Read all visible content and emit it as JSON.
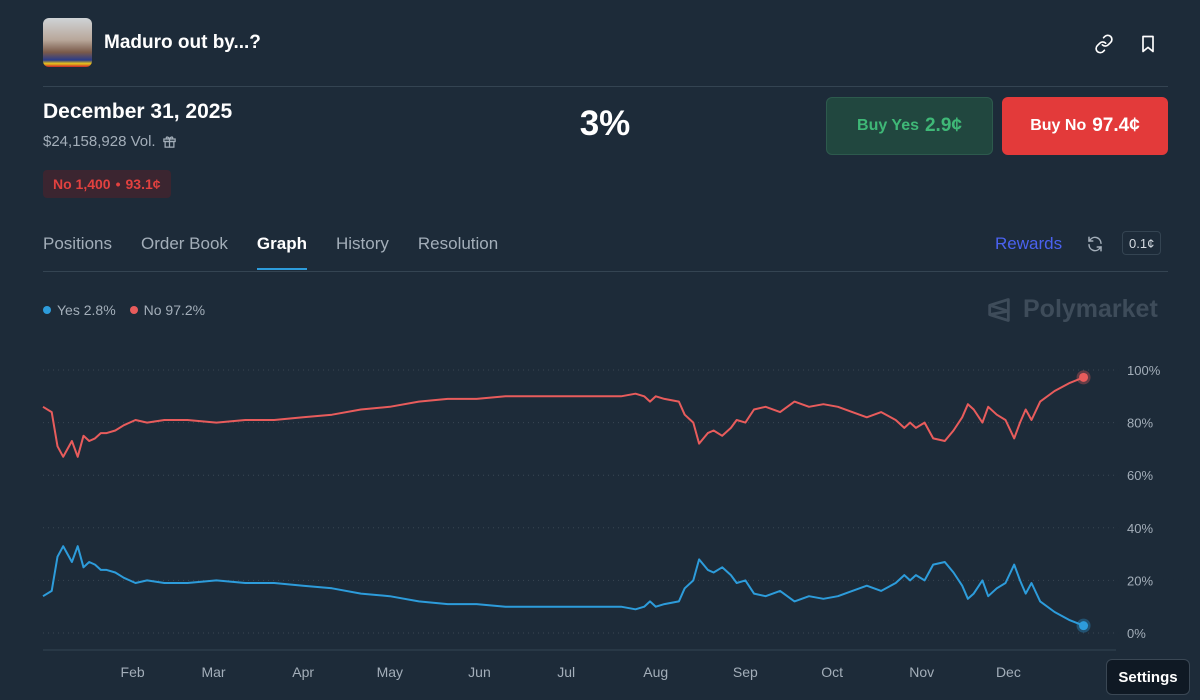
{
  "header": {
    "title": "Maduro out by...?",
    "link_icon": "link-icon",
    "bookmark_icon": "bookmark-icon"
  },
  "market": {
    "date": "December 31, 2025",
    "volume": "$24,158,928 Vol.",
    "gift_icon": "gift-icon",
    "position_side": "No 1,400",
    "position_sep": "•",
    "position_price": "93.1¢",
    "chance": "3%"
  },
  "buttons": {
    "yes_label": "Buy Yes",
    "yes_price": "2.9¢",
    "no_label": "Buy No",
    "no_price": "97.4¢"
  },
  "tabs": [
    "Positions",
    "Order Book",
    "Graph",
    "History",
    "Resolution"
  ],
  "active_tab": "Graph",
  "toolbar": {
    "rewards": "Rewards",
    "tick_size": "0.1¢"
  },
  "legend": {
    "yes": "Yes 2.8%",
    "no": "No 97.2%"
  },
  "brand": "Polymarket",
  "settings_label": "Settings",
  "colors": {
    "background": "#1d2b39",
    "yes_series": "#2d9cdb",
    "no_series": "#e85c5c",
    "buy_yes_bg": "#21473f",
    "buy_yes_text": "#3fb877",
    "buy_no_bg": "#e33a3a",
    "rewards": "#4a62f0",
    "grid": "#3a4754"
  },
  "chart_data": {
    "type": "line",
    "x_label": "",
    "y_label": "",
    "xlim": [
      0,
      365
    ],
    "ylim": [
      0,
      100
    ],
    "y_ticks": [
      "0%",
      "20%",
      "40%",
      "60%",
      "80%",
      "100%"
    ],
    "x_ticks": [
      {
        "label": "Feb",
        "x": 31
      },
      {
        "label": "Mar",
        "x": 59
      },
      {
        "label": "Apr",
        "x": 90
      },
      {
        "label": "May",
        "x": 120
      },
      {
        "label": "Jun",
        "x": 151
      },
      {
        "label": "Jul",
        "x": 181
      },
      {
        "label": "Aug",
        "x": 212
      },
      {
        "label": "Sep",
        "x": 243
      },
      {
        "label": "Oct",
        "x": 273
      },
      {
        "label": "Nov",
        "x": 304
      },
      {
        "label": "Dec",
        "x": 334
      }
    ],
    "grid": true,
    "series": [
      {
        "name": "Yes",
        "x": [
          0,
          3,
          5,
          7,
          8,
          10,
          12,
          14,
          16,
          18,
          20,
          22,
          25,
          28,
          32,
          36,
          42,
          50,
          60,
          70,
          80,
          90,
          100,
          110,
          120,
          130,
          140,
          150,
          160,
          170,
          180,
          190,
          200,
          205,
          208,
          210,
          212,
          215,
          220,
          222,
          225,
          227,
          230,
          232,
          235,
          238,
          240,
          243,
          246,
          250,
          255,
          260,
          265,
          270,
          275,
          280,
          285,
          290,
          295,
          298,
          300,
          302,
          305,
          308,
          312,
          315,
          318,
          320,
          322,
          325,
          327,
          330,
          333,
          336,
          338,
          340,
          342,
          345,
          350,
          355,
          360
        ],
        "values": [
          14,
          16,
          29,
          33,
          31,
          27,
          33,
          25,
          27,
          26,
          24,
          24,
          23,
          21,
          19,
          20,
          19,
          19,
          20,
          19,
          19,
          18,
          17,
          15,
          14,
          12,
          11,
          11,
          10,
          10,
          10,
          10,
          10,
          9,
          10,
          12,
          10,
          11,
          12,
          17,
          20,
          28,
          24,
          23,
          25,
          22,
          19,
          20,
          15,
          14,
          16,
          12,
          14,
          13,
          14,
          16,
          18,
          16,
          19,
          22,
          20,
          22,
          20,
          26,
          27,
          23,
          18,
          13,
          15,
          20,
          14,
          17,
          19,
          26,
          20,
          15,
          19,
          12,
          8,
          5,
          2.8
        ]
      },
      {
        "name": "No",
        "x": [
          0,
          3,
          5,
          7,
          8,
          10,
          12,
          14,
          16,
          18,
          20,
          22,
          25,
          28,
          32,
          36,
          42,
          50,
          60,
          70,
          80,
          90,
          100,
          110,
          120,
          130,
          140,
          150,
          160,
          170,
          180,
          190,
          200,
          205,
          208,
          210,
          212,
          215,
          220,
          222,
          225,
          227,
          230,
          232,
          235,
          238,
          240,
          243,
          246,
          250,
          255,
          260,
          265,
          270,
          275,
          280,
          285,
          290,
          295,
          298,
          300,
          302,
          305,
          308,
          312,
          315,
          318,
          320,
          322,
          325,
          327,
          330,
          333,
          336,
          338,
          340,
          342,
          345,
          350,
          355,
          360
        ],
        "values": [
          86,
          84,
          71,
          67,
          69,
          73,
          67,
          75,
          73,
          74,
          76,
          76,
          77,
          79,
          81,
          80,
          81,
          81,
          80,
          81,
          81,
          82,
          83,
          85,
          86,
          88,
          89,
          89,
          90,
          90,
          90,
          90,
          90,
          91,
          90,
          88,
          90,
          89,
          88,
          83,
          80,
          72,
          76,
          77,
          75,
          78,
          81,
          80,
          85,
          86,
          84,
          88,
          86,
          87,
          86,
          84,
          82,
          84,
          81,
          78,
          80,
          78,
          80,
          74,
          73,
          77,
          82,
          87,
          85,
          80,
          86,
          83,
          81,
          74,
          80,
          85,
          81,
          88,
          92,
          95,
          97.2
        ]
      }
    ]
  }
}
